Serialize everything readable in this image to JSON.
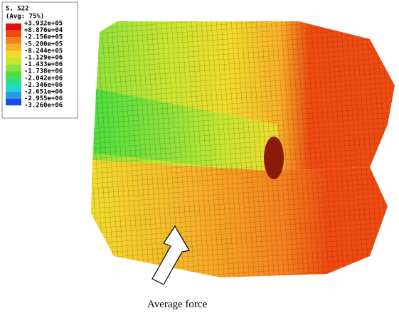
{
  "legend": {
    "title": "S, S22",
    "subtitle": "(Avg: 75%)",
    "labels": [
      "+3.932e+05",
      "+8.876e+04",
      "-2.156e+05",
      "-5.200e+05",
      "-8.244e+05",
      "-1.129e+06",
      "-1.433e+06",
      "-1.738e+06",
      "-2.042e+06",
      "-2.346e+06",
      "-2.651e+06",
      "-2.955e+06",
      "-3.260e+06"
    ],
    "colors": [
      "#e01010",
      "#f04a10",
      "#f7801c",
      "#f7b028",
      "#f2dc2a",
      "#c8e630",
      "#8ee23a",
      "#4ede3c",
      "#28e08a",
      "#22d8cf",
      "#2a9ae6",
      "#1c4ae8"
    ]
  },
  "caption": "Average force"
}
